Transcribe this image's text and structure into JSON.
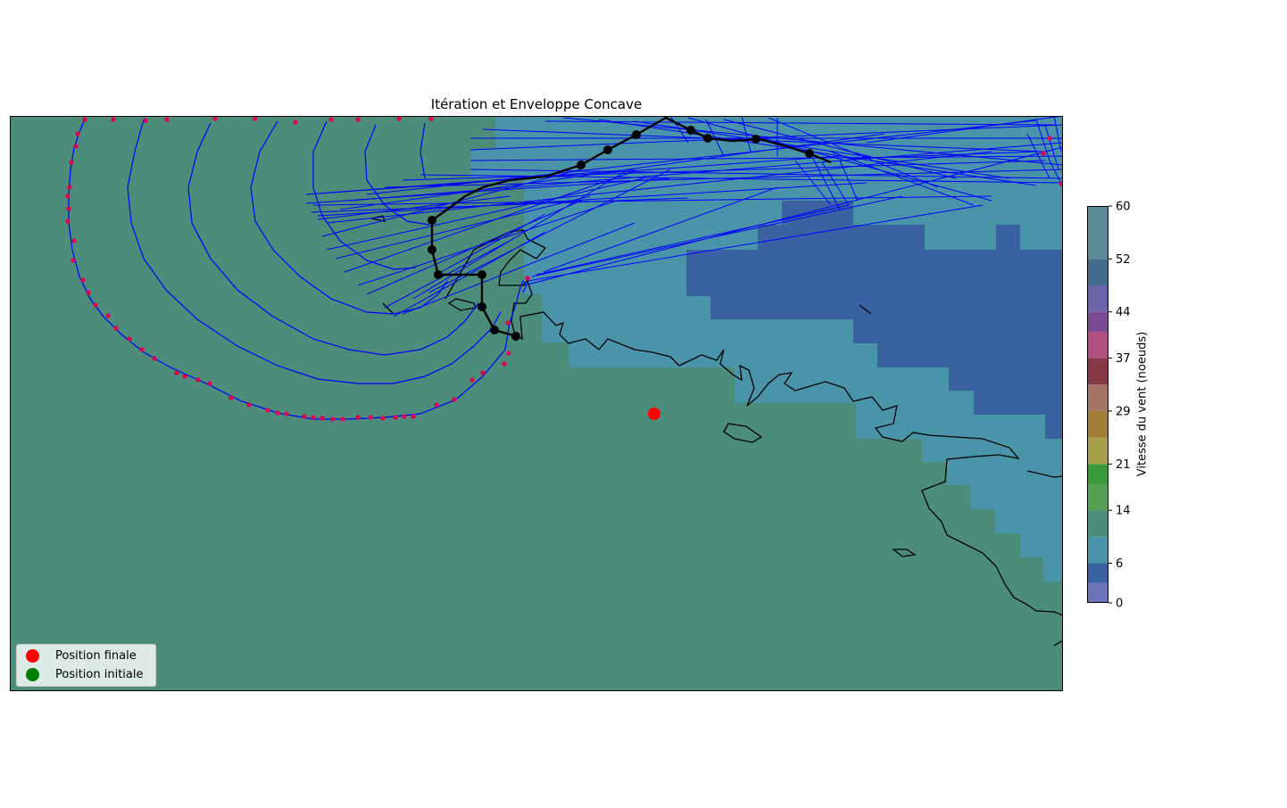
{
  "title": "Itération et Enveloppe Concave",
  "legend": {
    "items": [
      {
        "label": "Position finale",
        "color": "#ff0000"
      },
      {
        "label": "Position initiale",
        "color": "#008000"
      }
    ]
  },
  "colorbar": {
    "label": "Vitesse du vent (noeuds)",
    "min": 0,
    "max": 60,
    "tick_labels": [
      "0",
      "6",
      "14",
      "21",
      "29",
      "37",
      "44",
      "52",
      "60"
    ],
    "tick_values": [
      0,
      6,
      14,
      21,
      29,
      37,
      44,
      52,
      60
    ],
    "bands": [
      {
        "from": 0,
        "to": 3,
        "color": "#6b74b8"
      },
      {
        "from": 3,
        "to": 6,
        "color": "#3a62a0"
      },
      {
        "from": 6,
        "to": 10,
        "color": "#4a94aa"
      },
      {
        "from": 10,
        "to": 14,
        "color": "#4c8c7a"
      },
      {
        "from": 14,
        "to": 18,
        "color": "#55a055"
      },
      {
        "from": 18,
        "to": 21,
        "color": "#3a9a3a"
      },
      {
        "from": 21,
        "to": 25,
        "color": "#a8a04c"
      },
      {
        "from": 25,
        "to": 29,
        "color": "#a07c38"
      },
      {
        "from": 29,
        "to": 33,
        "color": "#a47464"
      },
      {
        "from": 33,
        "to": 37,
        "color": "#843848"
      },
      {
        "from": 37,
        "to": 41,
        "color": "#b05080"
      },
      {
        "from": 41,
        "to": 44,
        "color": "#7a4a94"
      },
      {
        "from": 44,
        "to": 48,
        "color": "#6c64a8"
      },
      {
        "from": 48,
        "to": 52,
        "color": "#446a8c"
      },
      {
        "from": 52,
        "to": 60,
        "color": "#5a8c98"
      }
    ]
  },
  "map": {
    "background_wind_knots": 12,
    "colors": {
      "isochrone": "#0000ff",
      "envelope_points": "#e0004c",
      "route": "#000000",
      "coastline": "#000000"
    }
  }
}
